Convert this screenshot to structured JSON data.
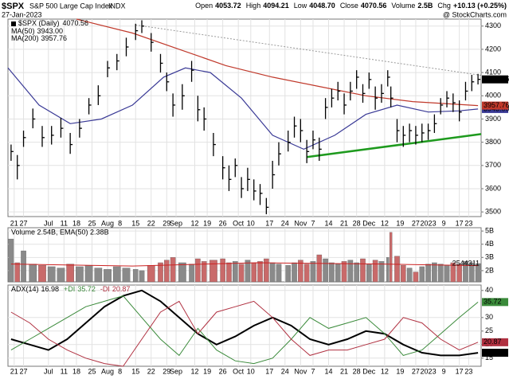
{
  "chart_data": [
    {
      "type": "ohlc",
      "title": "$SPX",
      "subtitle": "S&P 500 Large Cap Index",
      "exchange": "INDX",
      "date": "27-Jan-2023",
      "quote": [
        {
          "label": "Open",
          "value": "4053.72"
        },
        {
          "label": "High",
          "value": "4094.21"
        },
        {
          "label": "Low",
          "value": "4048.70"
        },
        {
          "label": "Close",
          "value": "4070.56"
        },
        {
          "label": "Volume",
          "value": "2.5B"
        },
        {
          "label": "Chg",
          "value": "+10.13 (+0.25%)"
        }
      ],
      "source": "@ StockCharts.com",
      "name": "$SPX (Daily)",
      "color": "#000000",
      "x": [
        1,
        3,
        5,
        8,
        11,
        14,
        17,
        20,
        23,
        26,
        29,
        32,
        35,
        38,
        41,
        43,
        46,
        49,
        51,
        53,
        56,
        59,
        61,
        63,
        66,
        69,
        71,
        73,
        75,
        77,
        79,
        81,
        83,
        85,
        87,
        90,
        92,
        94,
        96,
        98,
        100,
        102,
        104,
        106,
        108,
        110,
        112,
        114,
        116,
        118,
        120,
        122,
        123,
        125,
        127,
        129,
        131,
        133,
        135,
        137,
        139,
        141,
        143,
        145,
        147,
        149,
        151
      ],
      "high": [
        3790,
        3745,
        3850,
        3945,
        3870,
        3870,
        3905,
        3840,
        3900,
        3990,
        4045,
        4150,
        4180,
        4250,
        4310,
        4325,
        4270,
        4180,
        4100,
        4010,
        4050,
        4150,
        4000,
        3950,
        3840,
        3740,
        3700,
        3730,
        3650,
        3690,
        3640,
        3620,
        3560,
        3720,
        3800,
        3850,
        3910,
        3900,
        3810,
        3850,
        3820,
        3990,
        4030,
        4060,
        4010,
        4060,
        4110,
        4050,
        4100,
        4040,
        4050,
        4110,
        4040,
        3900,
        3870,
        3880,
        3870,
        3880,
        3880,
        3920,
        3990,
        4020,
        4010,
        3980,
        4060,
        4090,
        4094.21
      ],
      "low": [
        3720,
        3640,
        3780,
        3860,
        3780,
        3790,
        3820,
        3750,
        3820,
        3920,
        3960,
        4080,
        4110,
        4170,
        4240,
        4270,
        4190,
        4100,
        4020,
        3910,
        3940,
        4060,
        3890,
        3850,
        3740,
        3640,
        3590,
        3650,
        3560,
        3590,
        3550,
        3530,
        3490,
        3600,
        3700,
        3760,
        3820,
        3800,
        3710,
        3770,
        3720,
        3900,
        3950,
        3980,
        3920,
        3980,
        4030,
        3970,
        4030,
        3940,
        3970,
        4040,
        3950,
        3800,
        3780,
        3800,
        3790,
        3800,
        3810,
        3840,
        3920,
        3950,
        3930,
        3890,
        3980,
        4020,
        4048.7
      ],
      "close": [
        3760,
        3700,
        3820,
        3900,
        3820,
        3830,
        3860,
        3790,
        3860,
        3960,
        4000,
        4120,
        4150,
        4210,
        4280,
        4300,
        4230,
        4140,
        4060,
        3960,
        4000,
        4110,
        3940,
        3900,
        3790,
        3690,
        3640,
        3700,
        3600,
        3640,
        3590,
        3580,
        3520,
        3660,
        3750,
        3800,
        3870,
        3850,
        3760,
        3810,
        3770,
        3950,
        3990,
        4020,
        3960,
        4020,
        4080,
        4010,
        4070,
        3990,
        4010,
        4080,
        3990,
        3850,
        3830,
        3850,
        3830,
        3840,
        3850,
        3880,
        3960,
        3990,
        3970,
        3930,
        4020,
        4060,
        4070.56
      ],
      "overlays": [
        {
          "name": "MA(50)",
          "color": "#3a3a96",
          "x": [
            0,
            10,
            20,
            30,
            40,
            50,
            57,
            65,
            75,
            85,
            95,
            105,
            115,
            125,
            135,
            145,
            151
          ],
          "values": [
            4120,
            3960,
            3880,
            3900,
            3960,
            4080,
            4120,
            4100,
            3990,
            3830,
            3770,
            3830,
            3920,
            3960,
            3930,
            3935,
            3943
          ],
          "last_label": "3943.00"
        },
        {
          "name": "MA(200)",
          "color": "#c0392b",
          "x": [
            22,
            25,
            40,
            55,
            70,
            85,
            100,
            115,
            130,
            151
          ],
          "values": [
            4330,
            4320,
            4270,
            4200,
            4130,
            4080,
            4040,
            4000,
            3975,
            3957.76
          ],
          "last_label": "3957.76"
        }
      ],
      "trendlines": [
        {
          "color": "#1e9a1e",
          "dashed": false,
          "x": [
            96,
            152
          ],
          "values": [
            3736,
            3835
          ]
        },
        {
          "color": "#9a9a9a",
          "dashed": true,
          "x": [
            41,
            152
          ],
          "values": [
            4305,
            4088
          ]
        }
      ],
      "xlim": [
        0,
        152
      ],
      "ylim": [
        3480,
        4330
      ],
      "yticks": [
        3500,
        3600,
        3700,
        3800,
        3900,
        4000,
        4100,
        4200,
        4300
      ],
      "xticks": [
        {
          "value": 2,
          "label": "21"
        },
        {
          "value": 5,
          "label": "27"
        },
        {
          "value": 13,
          "label": "Jul"
        },
        {
          "value": 18,
          "label": "11"
        },
        {
          "value": 22,
          "label": "18"
        },
        {
          "value": 27,
          "label": "25"
        },
        {
          "value": 32,
          "label": "Aug"
        },
        {
          "value": 36,
          "label": "8"
        },
        {
          "value": 41,
          "label": "15"
        },
        {
          "value": 46,
          "label": "22"
        },
        {
          "value": 51,
          "label": "29"
        },
        {
          "value": 54,
          "label": "Sep"
        },
        {
          "value": 60,
          "label": "12"
        },
        {
          "value": 64,
          "label": "19"
        },
        {
          "value": 69,
          "label": "26"
        },
        {
          "value": 74,
          "label": "Oct"
        },
        {
          "value": 78,
          "label": "10"
        },
        {
          "value": 84,
          "label": "17"
        },
        {
          "value": 89,
          "label": "24"
        },
        {
          "value": 94,
          "label": "Nov"
        },
        {
          "value": 98,
          "label": "7"
        },
        {
          "value": 103,
          "label": "14"
        },
        {
          "value": 108,
          "label": "21"
        },
        {
          "value": 112,
          "label": "28"
        },
        {
          "value": 116,
          "label": "Dec"
        },
        {
          "value": 121,
          "label": "12"
        },
        {
          "value": 126,
          "label": "19"
        },
        {
          "value": 131,
          "label": "27"
        },
        {
          "value": 135,
          "label": "2023"
        },
        {
          "value": 140,
          "label": "9"
        },
        {
          "value": 145,
          "label": "17"
        },
        {
          "value": 148,
          "label": "23"
        }
      ],
      "grid": true
    },
    {
      "type": "bar",
      "legend": "Volume 2.54B, EMA(50) 2.38B",
      "up_color": "#8a8a8a",
      "down_color": "#c96a6a",
      "values": [
        4.4,
        2.6,
        3.5,
        2.5,
        2.4,
        2.3,
        2.2,
        2.5,
        2.3,
        2.4,
        2.2,
        2.1,
        2.3,
        2.2,
        2.1,
        2.0,
        2.4,
        2.6,
        2.8,
        3.0,
        2.6,
        2.5,
        2.9,
        2.7,
        2.8,
        2.9,
        2.6,
        2.7,
        2.5,
        2.8,
        2.6,
        2.7,
        2.9,
        2.6,
        2.5,
        2.4,
        2.6,
        2.8,
        2.5,
        2.7,
        3.2,
        2.9,
        2.6,
        2.5,
        2.7,
        2.8,
        2.6,
        2.9,
        2.5,
        2.8,
        2.7,
        3.0,
        4.9,
        3.1,
        2.4,
        2.2,
        1.9,
        2.3,
        2.5,
        2.6,
        2.5,
        2.4,
        2.6,
        2.5,
        2.7,
        2.6,
        2.54
      ],
      "last_label": "2544311",
      "ema": {
        "color": "#cc2222",
        "x": [
          1,
          40,
          80,
          120,
          151
        ],
        "values": [
          2.5,
          2.35,
          2.6,
          2.5,
          2.38
        ]
      },
      "ylim": [
        1.15,
        5.25
      ],
      "yticks": [
        {
          "value": 2,
          "label": "2B"
        },
        {
          "value": 3,
          "label": "3B"
        },
        {
          "value": 4,
          "label": "4B"
        },
        {
          "value": 5,
          "label": "5B"
        }
      ]
    },
    {
      "type": "line",
      "x": [
        1,
        7,
        13,
        19,
        25,
        31,
        37,
        43,
        49,
        55,
        61,
        67,
        73,
        79,
        85,
        91,
        97,
        103,
        109,
        115,
        121,
        127,
        133,
        139,
        145,
        151
      ],
      "series": [
        {
          "name": "ADX(14)",
          "color": "#000000",
          "width": 2,
          "values": [
            22,
            20,
            18,
            22,
            28,
            34,
            38,
            40,
            36,
            30,
            24,
            20,
            23,
            27,
            30,
            27,
            22,
            20,
            22,
            25,
            24,
            20,
            17,
            16,
            16,
            16.98
          ]
        },
        {
          "name": "+DI",
          "color": "#3a8a3a",
          "width": 1,
          "values": [
            18,
            22,
            26,
            30,
            34,
            36,
            38,
            30,
            22,
            16,
            26,
            18,
            14,
            13,
            15,
            22,
            30,
            26,
            28,
            30,
            24,
            16,
            18,
            24,
            30,
            35.72
          ]
        },
        {
          "name": "-DI",
          "color": "#b03040",
          "width": 1,
          "values": [
            32,
            28,
            22,
            18,
            15,
            13,
            12,
            22,
            32,
            36,
            24,
            32,
            34,
            36,
            30,
            22,
            16,
            18,
            18,
            20,
            22,
            30,
            28,
            22,
            18,
            20.87
          ]
        }
      ],
      "ylim": [
        12,
        42
      ],
      "yticks": [
        15,
        20,
        25,
        30,
        40
      ]
    }
  ]
}
